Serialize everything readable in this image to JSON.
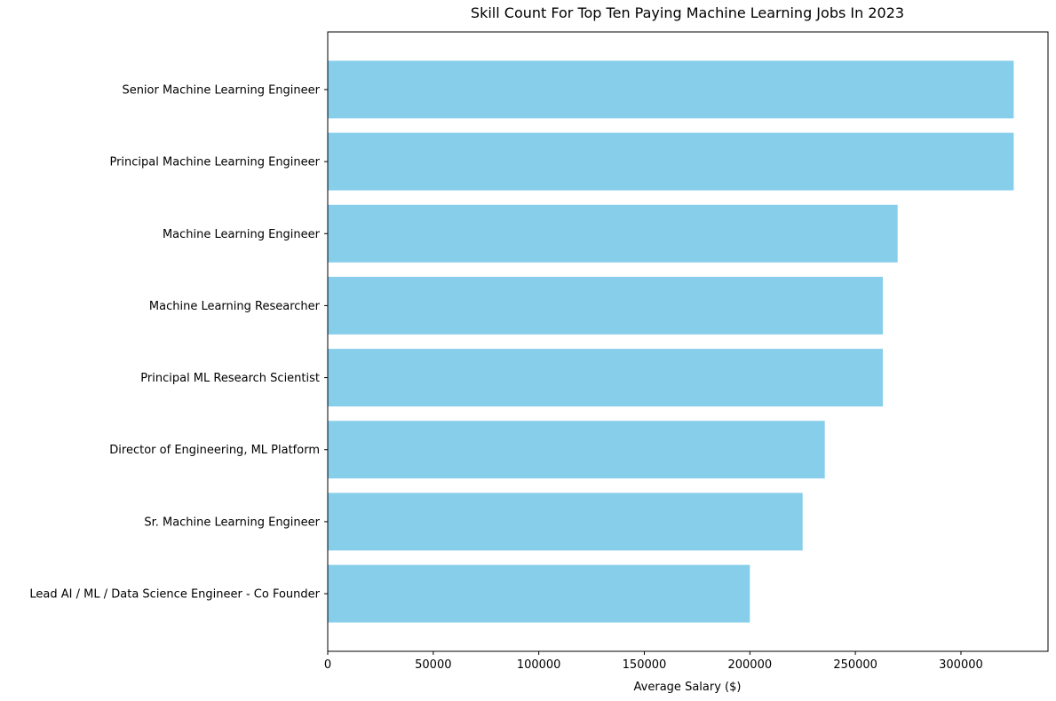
{
  "chart_data": {
    "type": "bar",
    "orientation": "horizontal",
    "title": "Skill Count For Top Ten Paying Machine Learning Jobs In 2023",
    "xlabel": "Average Salary ($)",
    "ylabel": "",
    "categories": [
      "Senior Machine Learning Engineer",
      "Principal Machine Learning Engineer",
      "Machine Learning Engineer",
      "Machine Learning Researcher",
      "Principal ML Research Scientist",
      "Director of Engineering, ML Platform",
      "Sr. Machine Learning Engineer",
      "Lead AI / ML / Data Science Engineer - Co Founder"
    ],
    "values": [
      325000,
      325000,
      270000,
      263000,
      263000,
      235500,
      225000,
      200000
    ],
    "xlim": [
      0,
      341250
    ],
    "xticks": [
      0,
      50000,
      100000,
      150000,
      200000,
      250000,
      300000
    ],
    "bar_color": "#87ceeb",
    "grid": false,
    "legend": "none"
  }
}
